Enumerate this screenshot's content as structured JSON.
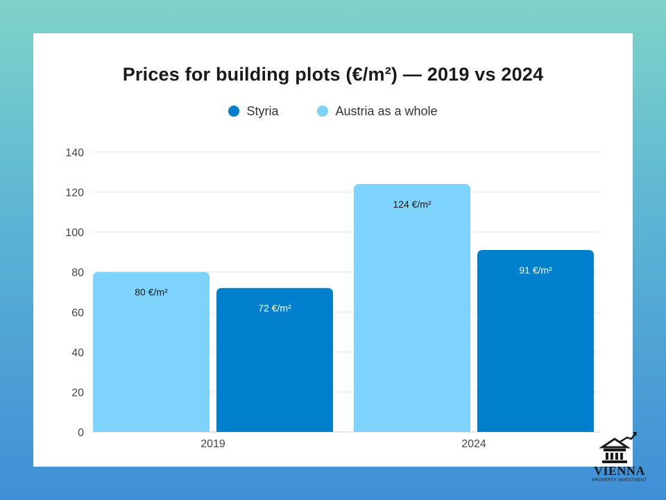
{
  "chart_data": {
    "type": "bar",
    "title": "Prices for building plots (€/m²) — 2019 vs 2024",
    "categories": [
      "2019",
      "2024"
    ],
    "series": [
      {
        "name": "Austria as a whole",
        "color": "#7dd3fc",
        "values": [
          80,
          124
        ],
        "labels": [
          "80 €/m²",
          "124 €/m²"
        ],
        "label_color": "#1a1a1a"
      },
      {
        "name": "Styria",
        "color": "#0080cc",
        "values": [
          72,
          91
        ],
        "labels": [
          "72 €/m²",
          "91 €/m²"
        ],
        "label_color": "#ffffff"
      }
    ],
    "legend": [
      {
        "name": "Styria",
        "color": "#0080cc"
      },
      {
        "name": "Austria as a whole",
        "color": "#7dd3fc"
      }
    ],
    "legend_position": "top-center",
    "ylim": [
      0,
      140
    ],
    "yticks": [
      0,
      20,
      40,
      60,
      80,
      100,
      120,
      140
    ],
    "xlabel": "",
    "ylabel": "",
    "grid": true
  },
  "logo": {
    "name": "VIENNA",
    "subtitle": "PROPERTY INVESTMENT"
  }
}
